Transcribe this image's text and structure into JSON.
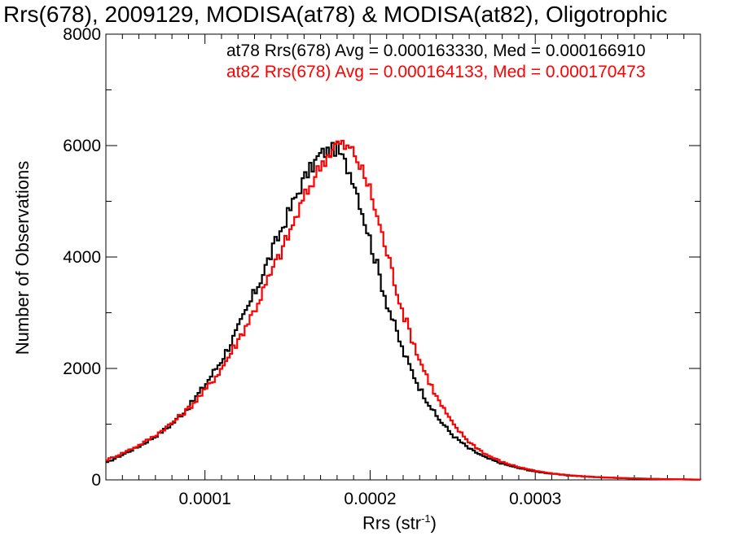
{
  "chart_data": {
    "type": "line",
    "title": "Rrs(678), 2009129, MODISA(at78) & MODISA(at82), Oligotrophic",
    "xlabel": "Rrs (str",
    "xlabel_sup": "-1",
    "xlabel_end": ")",
    "ylabel": "Number of Observations",
    "xlim": [
      4e-05,
      0.0004
    ],
    "ylim": [
      0,
      8000
    ],
    "xticks": [
      0.0001,
      0.0002,
      0.0003
    ],
    "xtick_labels": [
      "0.0001",
      "0.0002",
      "0.0003"
    ],
    "yticks": [
      0,
      2000,
      4000,
      6000,
      8000
    ],
    "ytick_labels": [
      "0",
      "2000",
      "4000",
      "6000",
      "8000"
    ],
    "grid": false,
    "legend_placement": "top-right",
    "series": [
      {
        "legend": "at78 Rrs(678) Avg = 0.000163330, Med = 0.000166910",
        "color": "#000000",
        "style": "step",
        "x": [
          4e-05,
          5e-05,
          6e-05,
          7e-05,
          8e-05,
          9e-05,
          0.0001,
          0.00011,
          0.00012,
          0.00013,
          0.00014,
          0.00015,
          0.00016,
          0.00017,
          0.00018,
          0.00019,
          0.0002,
          0.00021,
          0.00022,
          0.00023,
          0.00024,
          0.00025,
          0.00026,
          0.00027,
          0.00028,
          0.00029,
          0.0003,
          0.00031,
          0.00032,
          0.00033,
          0.00034,
          0.00035,
          0.00036,
          0.00037,
          0.00038,
          0.00039,
          0.0004
        ],
        "y": [
          300,
          450,
          600,
          780,
          1000,
          1300,
          1700,
          2150,
          2700,
          3350,
          4050,
          4750,
          5400,
          5850,
          5950,
          5400,
          4300,
          3200,
          2300,
          1650,
          1150,
          800,
          560,
          400,
          290,
          210,
          150,
          110,
          80,
          60,
          45,
          35,
          25,
          18,
          12,
          8,
          5
        ]
      },
      {
        "legend": "at82 Rrs(678) Avg = 0.000164133, Med = 0.000170473",
        "color": "#ff0000",
        "style": "step",
        "x": [
          4e-05,
          5e-05,
          6e-05,
          7e-05,
          8e-05,
          9e-05,
          0.0001,
          0.00011,
          0.00012,
          0.00013,
          0.00014,
          0.00015,
          0.00016,
          0.00017,
          0.00018,
          0.00019,
          0.0002,
          0.00021,
          0.00022,
          0.00023,
          0.00024,
          0.00025,
          0.00026,
          0.00027,
          0.00028,
          0.00029,
          0.0003,
          0.00031,
          0.00032,
          0.00033,
          0.00034,
          0.00035,
          0.00036,
          0.00037,
          0.00038,
          0.00039,
          0.0004
        ],
        "y": [
          350,
          480,
          620,
          800,
          1020,
          1280,
          1600,
          2000,
          2500,
          3050,
          3700,
          4350,
          5050,
          5650,
          6050,
          5900,
          5200,
          4100,
          3000,
          2150,
          1500,
          1000,
          680,
          460,
          320,
          230,
          160,
          115,
          85,
          62,
          46,
          34,
          25,
          18,
          12,
          8,
          5
        ]
      }
    ]
  }
}
